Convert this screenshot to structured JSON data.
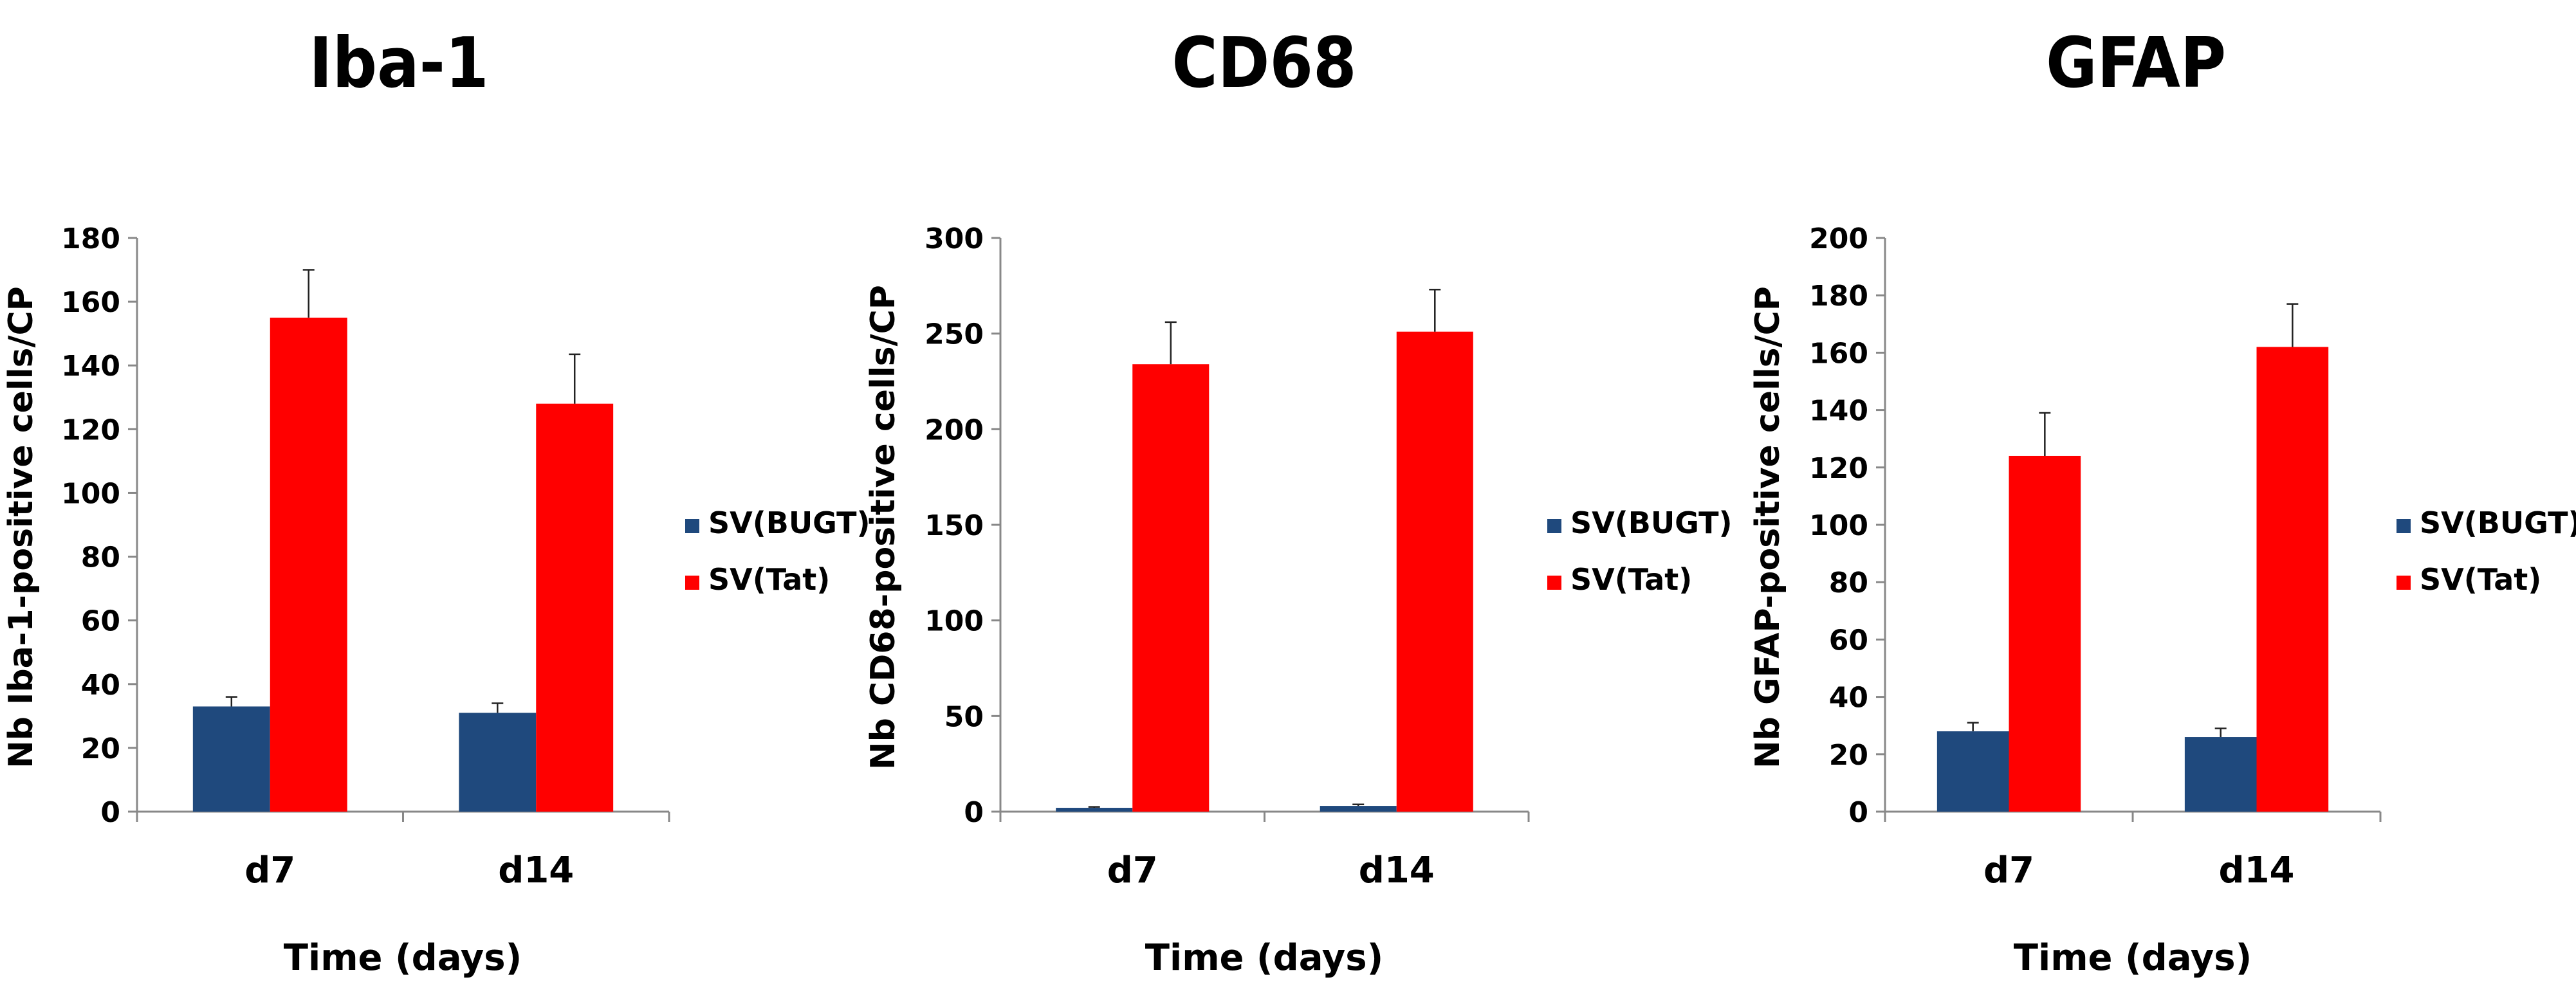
{
  "chart_data": [
    {
      "type": "bar",
      "title": "Iba-1",
      "ylabel": "Nb Iba-1-positive cells/CP",
      "xlabel": "Time (days)",
      "ylim": [
        0,
        180
      ],
      "yticks": [
        0,
        20,
        40,
        60,
        80,
        100,
        120,
        140,
        160,
        180
      ],
      "categories": [
        "d7",
        "d14"
      ],
      "series": [
        {
          "name": "SV(BUGT)",
          "color": "#1f497d",
          "values": [
            33,
            31
          ],
          "errors": [
            3,
            3
          ]
        },
        {
          "name": "SV(Tat)",
          "color": "#ff0000",
          "values": [
            155,
            128
          ],
          "errors": [
            15,
            15.5
          ]
        }
      ],
      "legend_position": "right"
    },
    {
      "type": "bar",
      "title": "CD68",
      "ylabel": "Nb CD68-positive cells/CP",
      "xlabel": "Time (days)",
      "ylim": [
        0,
        300
      ],
      "yticks": [
        0,
        50,
        100,
        150,
        200,
        250,
        300
      ],
      "categories": [
        "d7",
        "d14"
      ],
      "series": [
        {
          "name": "SV(BUGT)",
          "color": "#1f497d",
          "values": [
            2,
            3
          ],
          "errors": [
            0.5,
            0.8
          ]
        },
        {
          "name": "SV(Tat)",
          "color": "#ff0000",
          "values": [
            234,
            251
          ],
          "errors": [
            22,
            22
          ]
        }
      ],
      "legend_position": "right"
    },
    {
      "type": "bar",
      "title": "GFAP",
      "ylabel": "Nb GFAP-positive cells/CP",
      "xlabel": "Time (days)",
      "ylim": [
        0,
        200
      ],
      "yticks": [
        0,
        20,
        40,
        60,
        80,
        100,
        120,
        140,
        160,
        180,
        200
      ],
      "categories": [
        "d7",
        "d14"
      ],
      "series": [
        {
          "name": "SV(BUGT)",
          "color": "#1f497d",
          "values": [
            28,
            26
          ],
          "errors": [
            3,
            3
          ]
        },
        {
          "name": "SV(Tat)",
          "color": "#ff0000",
          "values": [
            124,
            162
          ],
          "errors": [
            15,
            15
          ]
        }
      ],
      "legend_position": "right"
    }
  ]
}
